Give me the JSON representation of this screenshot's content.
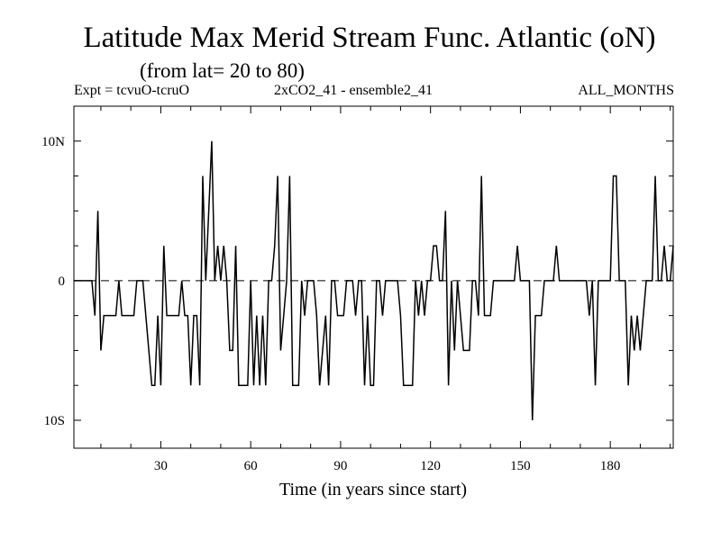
{
  "chart_data": {
    "type": "line",
    "title": "Latitude Max Merid Stream Func. Atlantic (oN)",
    "subtitle": "(from lat= 20 to 80)",
    "header_left": "Expt = tcvuO-tcruO",
    "header_center": "2xCO2_41 - ensemble2_41",
    "header_right": "ALL_MONTHS",
    "xlabel": "Time (in years since start)",
    "ylabel": "",
    "xlim": [
      1,
      201
    ],
    "ylim": [
      -12,
      12.5
    ],
    "x_ticks": [
      {
        "value": 30,
        "label": "30"
      },
      {
        "value": 60,
        "label": "60"
      },
      {
        "value": 90,
        "label": "90"
      },
      {
        "value": 120,
        "label": "120"
      },
      {
        "value": 150,
        "label": "150"
      },
      {
        "value": 180,
        "label": "180"
      }
    ],
    "y_ticks": [
      {
        "value": 10,
        "label": "10N"
      },
      {
        "value": 0,
        "label": "0"
      },
      {
        "value": -10,
        "label": "10S"
      }
    ],
    "zero_line": "dashed",
    "grid": false,
    "series": [
      {
        "x": [
          1,
          2,
          3,
          4,
          5,
          6,
          7,
          8,
          9,
          10,
          11,
          12,
          13,
          14,
          15,
          16,
          17,
          18,
          19,
          20,
          21,
          22,
          23,
          24,
          25,
          26,
          27,
          28,
          29,
          30,
          31,
          32,
          33,
          34,
          35,
          36,
          37,
          38,
          39,
          40,
          41,
          42,
          43,
          44,
          45,
          46,
          47,
          48,
          49,
          50,
          51,
          52,
          53,
          54,
          55,
          56,
          57,
          58,
          59,
          60,
          61,
          62,
          63,
          64,
          65,
          66,
          67,
          68,
          69,
          70,
          71,
          72,
          73,
          74,
          75,
          76,
          77,
          78,
          79,
          80,
          81,
          82,
          83,
          84,
          85,
          86,
          87,
          88,
          89,
          90,
          91,
          92,
          93,
          94,
          95,
          96,
          97,
          98,
          99,
          100,
          101,
          102,
          103,
          104,
          105,
          106,
          107,
          108,
          109,
          110,
          111,
          112,
          113,
          114,
          115,
          116,
          117,
          118,
          119,
          120,
          121,
          122,
          123,
          124,
          125,
          126,
          127,
          128,
          129,
          130,
          131,
          132,
          133,
          134,
          135,
          136,
          137,
          138,
          139,
          140,
          141,
          142,
          143,
          144,
          145,
          146,
          147,
          148,
          149,
          150,
          151,
          152,
          153,
          154,
          155,
          156,
          157,
          158,
          159,
          160,
          161,
          162,
          163,
          164,
          165,
          166,
          167,
          168,
          169,
          170,
          171,
          172,
          173,
          174,
          175,
          176,
          177,
          178,
          179,
          180,
          181,
          182,
          183,
          184,
          185,
          186,
          187,
          188,
          189,
          190,
          191,
          192,
          193,
          194,
          195,
          196,
          197,
          198,
          199,
          200,
          201
        ],
        "y": [
          0,
          0,
          0,
          0,
          0,
          0,
          0,
          -2.5,
          5,
          -5,
          -2.5,
          -2.5,
          -2.5,
          -2.5,
          -2.5,
          0,
          -2.5,
          -2.5,
          -2.5,
          -2.5,
          -2.5,
          0,
          0,
          0,
          -2.5,
          -5,
          -7.5,
          -7.5,
          -2.5,
          -7.5,
          2.5,
          -2.5,
          -2.5,
          -2.5,
          -2.5,
          -2.5,
          0,
          -2.5,
          -2.5,
          -7.5,
          -2.5,
          -2.5,
          -7.5,
          7.5,
          0,
          5,
          10,
          0,
          2.5,
          0,
          2.5,
          0,
          -5,
          -5,
          2.5,
          -7.5,
          -7.5,
          -7.5,
          -7.5,
          0,
          -7.5,
          -2.5,
          -7.5,
          -2.5,
          -7.5,
          0,
          0,
          2.5,
          7.5,
          -5,
          -2.5,
          0,
          7.5,
          -7.5,
          -7.5,
          -7.5,
          0,
          -2.5,
          0,
          0,
          0,
          -2.5,
          -7.5,
          -5,
          -2.5,
          -7.5,
          0,
          0,
          -2.5,
          -2.5,
          -2.5,
          0,
          0,
          0,
          -2.5,
          0,
          0,
          -7.5,
          -2.5,
          -7.5,
          -7.5,
          0,
          0,
          -2.5,
          0,
          0,
          0,
          0,
          0,
          -2.5,
          -7.5,
          -7.5,
          -7.5,
          -7.5,
          0,
          -2.5,
          0,
          -2.5,
          0,
          0,
          2.5,
          2.5,
          0,
          0,
          5,
          -7.5,
          0,
          -5,
          0,
          -2.5,
          -5,
          -5,
          -5,
          0,
          0,
          -2.5,
          7.5,
          -2.5,
          -2.5,
          -2.5,
          0,
          0,
          0,
          0,
          0,
          0,
          0,
          0,
          2.5,
          0,
          0,
          0,
          0,
          -10,
          -2.5,
          -2.5,
          -2.5,
          0,
          0,
          0,
          0,
          2.5,
          0,
          0,
          0,
          0,
          0,
          0,
          0,
          0,
          0,
          0,
          -2.5,
          0,
          -7.5,
          0,
          0,
          0,
          0,
          0,
          7.5,
          7.5,
          0,
          0,
          0,
          -7.5,
          -2.5,
          -5,
          -2.5,
          -5,
          -2.5,
          0,
          0,
          0,
          7.5,
          0,
          0,
          2.5,
          0,
          0,
          2.5
        ]
      }
    ]
  }
}
